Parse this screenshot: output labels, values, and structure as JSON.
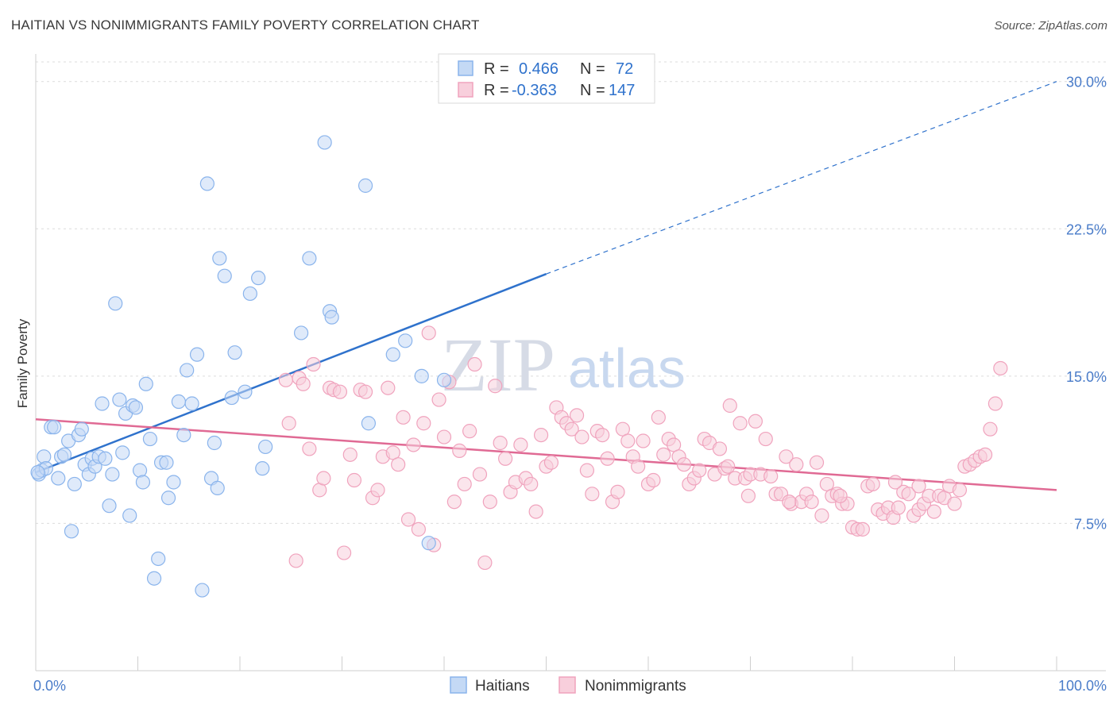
{
  "title": "HAITIAN VS NONIMMIGRANTS FAMILY POVERTY CORRELATION CHART",
  "source": "Source: ZipAtlas.com",
  "watermark": {
    "zip": "ZIP",
    "atlas": "atlas"
  },
  "colors": {
    "haitians": "#8ab4ec",
    "haitians_fill": "#c4d9f5",
    "haitians_line": "#2f72cc",
    "nonimmigrants": "#f0a3bd",
    "nonimmigrants_fill": "#f8cfdc",
    "nonimmigrants_line": "#e06a94",
    "tick": "#4a7cc9"
  },
  "legend": {
    "rows": [
      {
        "r_label": "R =",
        "r_value": "0.466",
        "n_label": "N =",
        "n_value": "72"
      },
      {
        "r_label": "R =",
        "r_value": "-0.363",
        "n_label": "N =",
        "n_value": "147"
      }
    ]
  },
  "bottom_legend": [
    "Haitians",
    "Nonimmigrants"
  ],
  "chart_data": {
    "type": "scatter",
    "title": "HAITIAN VS NONIMMIGRANTS FAMILY POVERTY CORRELATION CHART",
    "xlabel": "",
    "ylabel": "Family Poverty",
    "xlim": [
      0,
      100
    ],
    "ylim": [
      0,
      31
    ],
    "x_tick_labels": [
      "0.0%",
      "100.0%"
    ],
    "y_ticks": [
      7.5,
      15.0,
      22.5,
      30.0
    ],
    "y_tick_labels": [
      "7.5%",
      "15.0%",
      "22.5%",
      "30.0%"
    ],
    "grid": "horizontal dashed",
    "legend_position": "top-center",
    "series": [
      {
        "name": "Haitians",
        "r": 0.466,
        "n": 72,
        "trend": {
          "x": [
            0,
            50
          ],
          "y": [
            10.1,
            20.2
          ],
          "extended_to": [
            100,
            30.0
          ]
        },
        "points": [
          [
            0.3,
            10.0
          ],
          [
            0.6,
            10.2
          ],
          [
            0.8,
            10.9
          ],
          [
            1.0,
            10.3
          ],
          [
            1.5,
            12.4
          ],
          [
            1.8,
            12.4
          ],
          [
            2.2,
            9.8
          ],
          [
            2.5,
            10.9
          ],
          [
            2.8,
            11.0
          ],
          [
            3.2,
            11.7
          ],
          [
            3.5,
            7.1
          ],
          [
            3.8,
            9.5
          ],
          [
            4.2,
            12.0
          ],
          [
            4.5,
            12.3
          ],
          [
            4.8,
            10.5
          ],
          [
            5.2,
            10.0
          ],
          [
            5.5,
            10.8
          ],
          [
            5.8,
            10.4
          ],
          [
            6.2,
            10.9
          ],
          [
            6.5,
            13.6
          ],
          [
            6.8,
            10.8
          ],
          [
            7.2,
            8.4
          ],
          [
            7.5,
            10.0
          ],
          [
            7.8,
            18.7
          ],
          [
            8.2,
            13.8
          ],
          [
            8.5,
            11.1
          ],
          [
            8.8,
            13.1
          ],
          [
            9.2,
            7.9
          ],
          [
            9.5,
            13.5
          ],
          [
            9.8,
            13.4
          ],
          [
            10.2,
            10.2
          ],
          [
            10.5,
            9.6
          ],
          [
            10.8,
            14.6
          ],
          [
            11.2,
            11.8
          ],
          [
            11.6,
            4.7
          ],
          [
            12.0,
            5.7
          ],
          [
            12.3,
            10.6
          ],
          [
            12.8,
            10.6
          ],
          [
            13.0,
            8.8
          ],
          [
            13.5,
            9.6
          ],
          [
            14.0,
            13.7
          ],
          [
            14.5,
            12.0
          ],
          [
            14.8,
            15.3
          ],
          [
            15.3,
            13.6
          ],
          [
            15.8,
            16.1
          ],
          [
            16.3,
            4.1
          ],
          [
            16.8,
            24.8
          ],
          [
            17.2,
            9.8
          ],
          [
            17.5,
            11.6
          ],
          [
            17.8,
            9.3
          ],
          [
            18.0,
            21.0
          ],
          [
            18.5,
            20.1
          ],
          [
            19.2,
            13.9
          ],
          [
            19.5,
            16.2
          ],
          [
            20.5,
            14.2
          ],
          [
            21.0,
            19.2
          ],
          [
            21.8,
            20.0
          ],
          [
            22.5,
            11.4
          ],
          [
            22.2,
            10.3
          ],
          [
            26.0,
            17.2
          ],
          [
            26.8,
            21.0
          ],
          [
            28.3,
            26.9
          ],
          [
            28.8,
            18.3
          ],
          [
            29.0,
            18.0
          ],
          [
            32.3,
            24.7
          ],
          [
            32.6,
            12.6
          ],
          [
            35.0,
            16.1
          ],
          [
            36.2,
            16.8
          ],
          [
            37.8,
            15.0
          ],
          [
            38.5,
            6.5
          ],
          [
            40.0,
            14.8
          ],
          [
            0.2,
            10.1
          ]
        ]
      },
      {
        "name": "Nonimmigrants",
        "r": -0.363,
        "n": 147,
        "trend": {
          "x": [
            0,
            100
          ],
          "y": [
            12.8,
            9.2
          ]
        },
        "points": [
          [
            24.5,
            14.8
          ],
          [
            24.8,
            12.6
          ],
          [
            25.5,
            5.6
          ],
          [
            25.8,
            14.9
          ],
          [
            26.2,
            14.6
          ],
          [
            26.8,
            11.3
          ],
          [
            27.2,
            15.6
          ],
          [
            27.8,
            9.2
          ],
          [
            28.2,
            9.8
          ],
          [
            28.8,
            14.4
          ],
          [
            29.2,
            14.3
          ],
          [
            29.8,
            14.2
          ],
          [
            30.2,
            6.0
          ],
          [
            30.8,
            11.0
          ],
          [
            31.2,
            9.7
          ],
          [
            31.8,
            14.3
          ],
          [
            32.3,
            14.2
          ],
          [
            33.0,
            8.8
          ],
          [
            33.5,
            9.2
          ],
          [
            34.0,
            10.9
          ],
          [
            34.5,
            14.4
          ],
          [
            35.0,
            11.1
          ],
          [
            35.5,
            10.5
          ],
          [
            36.0,
            12.9
          ],
          [
            36.5,
            7.7
          ],
          [
            37.0,
            11.5
          ],
          [
            37.5,
            7.2
          ],
          [
            38.0,
            12.6
          ],
          [
            38.5,
            17.2
          ],
          [
            39.0,
            6.4
          ],
          [
            39.5,
            13.8
          ],
          [
            40.0,
            11.9
          ],
          [
            40.5,
            14.7
          ],
          [
            41.0,
            8.6
          ],
          [
            41.5,
            11.2
          ],
          [
            42.0,
            9.5
          ],
          [
            42.5,
            12.2
          ],
          [
            43.0,
            15.6
          ],
          [
            43.5,
            10.0
          ],
          [
            44.0,
            5.5
          ],
          [
            44.5,
            8.6
          ],
          [
            45.0,
            14.5
          ],
          [
            45.5,
            11.6
          ],
          [
            46.0,
            10.8
          ],
          [
            46.5,
            9.1
          ],
          [
            47.0,
            9.6
          ],
          [
            47.5,
            11.5
          ],
          [
            48.0,
            9.8
          ],
          [
            48.5,
            9.5
          ],
          [
            49.0,
            8.1
          ],
          [
            49.5,
            12.0
          ],
          [
            50.0,
            10.4
          ],
          [
            50.5,
            10.6
          ],
          [
            51.0,
            13.4
          ],
          [
            51.5,
            12.9
          ],
          [
            52.0,
            12.6
          ],
          [
            52.5,
            12.3
          ],
          [
            53.0,
            13.0
          ],
          [
            53.5,
            11.9
          ],
          [
            54.0,
            10.2
          ],
          [
            54.5,
            9.0
          ],
          [
            55.0,
            12.2
          ],
          [
            55.5,
            12.0
          ],
          [
            56.0,
            10.8
          ],
          [
            56.5,
            8.6
          ],
          [
            57.0,
            9.1
          ],
          [
            57.5,
            12.3
          ],
          [
            58.0,
            11.7
          ],
          [
            58.5,
            10.9
          ],
          [
            59.0,
            10.4
          ],
          [
            59.5,
            11.7
          ],
          [
            60.0,
            9.5
          ],
          [
            60.5,
            9.7
          ],
          [
            61.0,
            12.9
          ],
          [
            61.5,
            11.0
          ],
          [
            62.0,
            11.8
          ],
          [
            62.5,
            11.5
          ],
          [
            63.0,
            10.9
          ],
          [
            63.5,
            10.5
          ],
          [
            64.0,
            9.5
          ],
          [
            64.5,
            9.8
          ],
          [
            65.0,
            10.2
          ],
          [
            65.5,
            11.8
          ],
          [
            66.0,
            11.6
          ],
          [
            66.5,
            10.0
          ],
          [
            67.0,
            11.3
          ],
          [
            67.5,
            10.3
          ],
          [
            68.0,
            13.5
          ],
          [
            68.5,
            9.8
          ],
          [
            69.0,
            12.6
          ],
          [
            69.5,
            9.8
          ],
          [
            70.0,
            10.0
          ],
          [
            70.5,
            12.7
          ],
          [
            71.0,
            10.0
          ],
          [
            71.5,
            11.8
          ],
          [
            72.0,
            9.9
          ],
          [
            72.5,
            9.0
          ],
          [
            73.0,
            9.0
          ],
          [
            73.5,
            10.9
          ],
          [
            74.0,
            8.5
          ],
          [
            74.5,
            10.5
          ],
          [
            75.0,
            8.6
          ],
          [
            75.5,
            9.0
          ],
          [
            76.0,
            8.6
          ],
          [
            76.5,
            10.6
          ],
          [
            77.0,
            7.9
          ],
          [
            77.5,
            9.5
          ],
          [
            78.0,
            8.9
          ],
          [
            78.5,
            9.0
          ],
          [
            79.0,
            8.5
          ],
          [
            79.5,
            8.5
          ],
          [
            80.0,
            7.3
          ],
          [
            80.5,
            7.2
          ],
          [
            81.0,
            7.2
          ],
          [
            81.5,
            9.4
          ],
          [
            82.0,
            9.5
          ],
          [
            82.5,
            8.2
          ],
          [
            83.0,
            8.0
          ],
          [
            83.5,
            8.3
          ],
          [
            84.0,
            7.8
          ],
          [
            84.5,
            8.3
          ],
          [
            85.0,
            9.1
          ],
          [
            85.5,
            9.0
          ],
          [
            86.0,
            7.9
          ],
          [
            86.5,
            8.2
          ],
          [
            87.0,
            8.5
          ],
          [
            87.5,
            8.9
          ],
          [
            88.0,
            8.1
          ],
          [
            88.5,
            8.9
          ],
          [
            89.0,
            8.8
          ],
          [
            89.5,
            9.4
          ],
          [
            90.0,
            8.5
          ],
          [
            90.5,
            9.2
          ],
          [
            91.0,
            10.4
          ],
          [
            91.5,
            10.5
          ],
          [
            92.0,
            10.7
          ],
          [
            92.5,
            10.9
          ],
          [
            93.0,
            11.0
          ],
          [
            93.5,
            12.3
          ],
          [
            94.0,
            13.6
          ],
          [
            94.5,
            15.4
          ],
          [
            86.5,
            9.4
          ],
          [
            84.2,
            9.6
          ],
          [
            78.8,
            8.9
          ],
          [
            73.8,
            8.6
          ],
          [
            69.8,
            8.9
          ],
          [
            67.8,
            10.4
          ]
        ]
      }
    ]
  }
}
